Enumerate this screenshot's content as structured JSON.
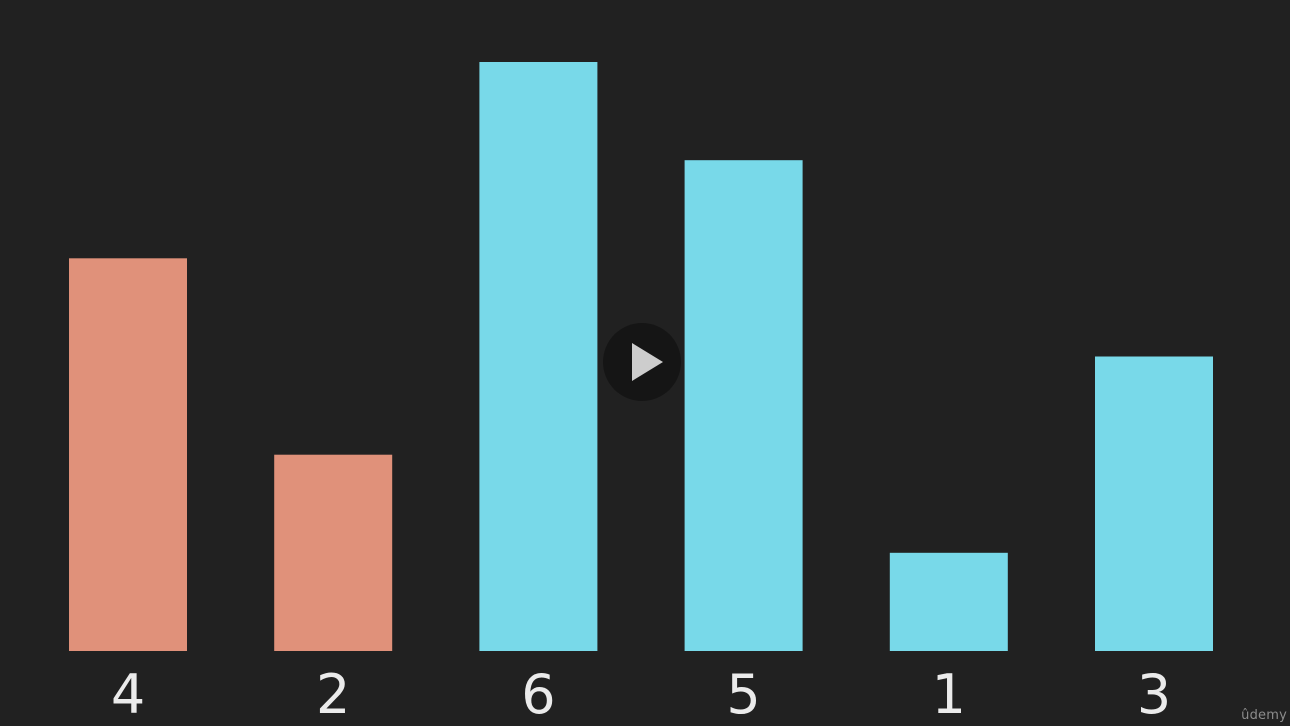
{
  "chart_data": {
    "type": "bar",
    "categories": [
      "4",
      "2",
      "6",
      "5",
      "1",
      "3"
    ],
    "values": [
      4,
      2,
      6,
      5,
      1,
      3
    ],
    "bar_colors": [
      "#E0917A",
      "#E0917A",
      "#78D9E9",
      "#78D9E9",
      "#78D9E9",
      "#78D9E9"
    ],
    "ylim": [
      0,
      6
    ],
    "grid": false,
    "title": "",
    "xlabel": "",
    "ylabel": ""
  },
  "colors": {
    "background": "#212121",
    "highlight_bar": "#E0917A",
    "default_bar": "#78D9E9",
    "label_text": "#EBEBEB"
  },
  "player": {
    "play_icon": "play-icon"
  },
  "watermark": {
    "text": "ûdemy"
  }
}
